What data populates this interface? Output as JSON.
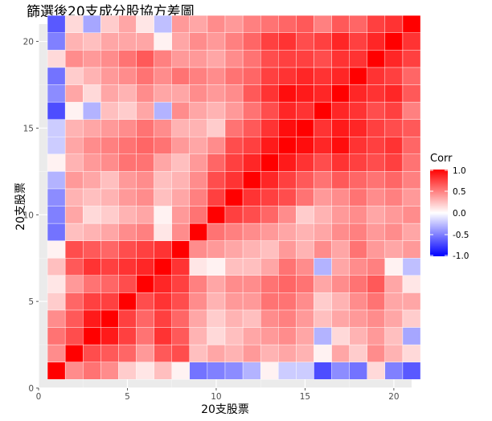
{
  "chart_data": {
    "type": "heatmap",
    "title": "篩選後20支成分股協方差圖",
    "xlabel": "20支股票",
    "ylabel": "20支股票",
    "xlim": [
      0,
      21
    ],
    "ylim": [
      0,
      21
    ],
    "x_ticks": [
      0,
      5,
      10,
      15,
      20
    ],
    "y_ticks": [
      0,
      5,
      10,
      15,
      20
    ],
    "grid": true,
    "legend": {
      "title": "Corr",
      "position": "right",
      "ticks": [
        1.0,
        0.5,
        0.0,
        -0.5,
        -1.0
      ],
      "tick_labels": [
        "1.0",
        "0.5",
        "0.0",
        "-0.5",
        "-1.0"
      ],
      "range": [
        -1,
        1
      ],
      "colors": {
        "low": "#0000ff",
        "mid": "#ffffff",
        "high": "#ff0000"
      }
    },
    "matrix": [
      [
        1.0,
        0.45,
        0.55,
        0.45,
        0.2,
        0.1,
        0.25,
        0.05,
        -0.55,
        -0.5,
        -0.45,
        -0.3,
        0.05,
        -0.2,
        -0.2,
        -0.7,
        -0.45,
        -0.55,
        0.15,
        -0.5,
        -0.65
      ],
      [
        0.45,
        1.0,
        0.7,
        0.65,
        0.6,
        0.4,
        0.65,
        0.7,
        0.25,
        0.35,
        0.3,
        0.4,
        0.3,
        0.35,
        0.3,
        0.05,
        0.35,
        0.2,
        0.45,
        0.3,
        0.15
      ],
      [
        0.55,
        0.7,
        1.0,
        0.9,
        0.75,
        0.55,
        0.8,
        0.65,
        0.3,
        0.15,
        0.25,
        0.35,
        0.4,
        0.45,
        0.35,
        -0.3,
        0.15,
        0.3,
        0.4,
        0.25,
        -0.35
      ],
      [
        0.45,
        0.65,
        0.9,
        1.0,
        0.75,
        0.6,
        0.75,
        0.6,
        0.35,
        0.2,
        0.3,
        0.25,
        0.45,
        0.5,
        0.4,
        0.25,
        0.35,
        0.4,
        0.45,
        0.35,
        0.2
      ],
      [
        0.2,
        0.6,
        0.75,
        0.75,
        1.0,
        0.7,
        0.8,
        0.7,
        0.45,
        0.3,
        0.4,
        0.4,
        0.55,
        0.55,
        0.45,
        0.2,
        0.3,
        0.45,
        0.55,
        0.35,
        0.35
      ],
      [
        0.1,
        0.4,
        0.55,
        0.6,
        0.7,
        1.0,
        0.85,
        0.75,
        0.5,
        0.35,
        0.45,
        0.45,
        0.55,
        0.6,
        0.55,
        0.35,
        0.45,
        0.55,
        0.65,
        0.35,
        0.1
      ],
      [
        0.25,
        0.65,
        0.8,
        0.75,
        0.8,
        0.85,
        1.0,
        0.8,
        0.1,
        0.05,
        0.25,
        0.25,
        0.35,
        0.55,
        0.45,
        -0.3,
        0.35,
        0.45,
        0.5,
        0.05,
        -0.25
      ],
      [
        0.05,
        0.7,
        0.65,
        0.6,
        0.7,
        0.75,
        0.8,
        1.0,
        0.45,
        0.4,
        0.35,
        0.3,
        0.25,
        0.4,
        0.3,
        0.45,
        0.35,
        0.55,
        0.4,
        0.35,
        0.4
      ],
      [
        -0.55,
        0.25,
        0.3,
        0.35,
        0.45,
        0.5,
        0.1,
        0.45,
        1.0,
        0.55,
        0.5,
        0.45,
        0.4,
        0.35,
        0.3,
        0.35,
        0.45,
        0.5,
        0.4,
        0.45,
        0.35
      ],
      [
        -0.5,
        0.35,
        0.15,
        0.2,
        0.3,
        0.35,
        0.05,
        0.4,
        0.55,
        1.0,
        0.75,
        0.7,
        0.6,
        0.45,
        0.2,
        0.3,
        0.4,
        0.45,
        0.35,
        0.4,
        0.45
      ],
      [
        -0.45,
        0.3,
        0.25,
        0.3,
        0.4,
        0.45,
        0.25,
        0.35,
        0.5,
        0.75,
        1.0,
        0.8,
        0.75,
        0.7,
        0.55,
        0.4,
        0.45,
        0.55,
        0.45,
        0.5,
        0.4
      ],
      [
        -0.3,
        0.4,
        0.35,
        0.25,
        0.4,
        0.45,
        0.25,
        0.3,
        0.45,
        0.7,
        0.8,
        1.0,
        0.85,
        0.75,
        0.65,
        0.55,
        0.65,
        0.6,
        0.55,
        0.6,
        0.5
      ],
      [
        0.05,
        0.3,
        0.4,
        0.45,
        0.55,
        0.55,
        0.35,
        0.25,
        0.4,
        0.6,
        0.75,
        0.85,
        1.0,
        0.9,
        0.8,
        0.7,
        0.8,
        0.75,
        0.7,
        0.75,
        0.55
      ],
      [
        -0.2,
        0.35,
        0.45,
        0.5,
        0.55,
        0.6,
        0.55,
        0.4,
        0.35,
        0.45,
        0.7,
        0.75,
        0.9,
        1.0,
        0.95,
        0.85,
        0.95,
        0.8,
        0.75,
        0.8,
        0.6
      ],
      [
        -0.2,
        0.3,
        0.35,
        0.4,
        0.45,
        0.55,
        0.45,
        0.3,
        0.3,
        0.2,
        0.55,
        0.65,
        0.8,
        0.95,
        1.0,
        0.8,
        0.9,
        0.85,
        0.75,
        0.7,
        0.65
      ],
      [
        -0.7,
        0.05,
        -0.3,
        0.25,
        0.2,
        0.35,
        -0.3,
        0.45,
        0.35,
        0.3,
        0.4,
        0.55,
        0.7,
        0.85,
        0.8,
        1.0,
        0.85,
        0.8,
        0.7,
        0.75,
        0.5
      ],
      [
        -0.45,
        0.35,
        0.15,
        0.35,
        0.3,
        0.45,
        0.35,
        0.35,
        0.45,
        0.4,
        0.45,
        0.65,
        0.8,
        0.95,
        0.9,
        0.85,
        1.0,
        0.85,
        0.8,
        0.85,
        0.65
      ],
      [
        -0.55,
        0.2,
        0.3,
        0.4,
        0.45,
        0.55,
        0.45,
        0.55,
        0.5,
        0.45,
        0.55,
        0.6,
        0.75,
        0.8,
        0.85,
        0.8,
        0.85,
        1.0,
        0.8,
        0.75,
        0.6
      ],
      [
        0.15,
        0.45,
        0.4,
        0.45,
        0.55,
        0.65,
        0.5,
        0.4,
        0.4,
        0.35,
        0.45,
        0.55,
        0.7,
        0.75,
        0.75,
        0.7,
        0.8,
        0.8,
        1.0,
        0.85,
        0.75
      ],
      [
        -0.5,
        0.3,
        0.25,
        0.35,
        0.35,
        0.35,
        0.05,
        0.35,
        0.45,
        0.4,
        0.5,
        0.6,
        0.75,
        0.8,
        0.7,
        0.75,
        0.85,
        0.75,
        0.85,
        1.0,
        0.8
      ],
      [
        -0.65,
        0.15,
        -0.35,
        0.2,
        0.35,
        0.1,
        -0.25,
        0.4,
        0.35,
        0.45,
        0.4,
        0.5,
        0.55,
        0.6,
        0.65,
        0.5,
        0.65,
        0.6,
        0.75,
        0.8,
        1.0
      ]
    ]
  }
}
